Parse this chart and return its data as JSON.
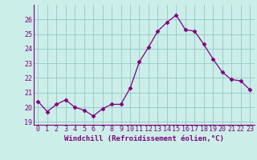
{
  "x": [
    0,
    1,
    2,
    3,
    4,
    5,
    6,
    7,
    8,
    9,
    10,
    11,
    12,
    13,
    14,
    15,
    16,
    17,
    18,
    19,
    20,
    21,
    22,
    23
  ],
  "y": [
    20.4,
    19.7,
    20.2,
    20.5,
    20.0,
    19.8,
    19.4,
    19.9,
    20.2,
    20.2,
    21.3,
    23.1,
    24.1,
    25.2,
    25.8,
    26.3,
    25.3,
    25.2,
    24.3,
    23.3,
    22.4,
    21.9,
    21.8,
    21.2
  ],
  "line_color": "#800080",
  "marker": "D",
  "marker_size": 2.5,
  "bg_color": "#cceee8",
  "grid_color": "#99cccc",
  "xlabel": "Windchill (Refroidissement éolien,°C)",
  "xlabel_color": "#800080",
  "tick_color": "#800080",
  "ylim": [
    18.8,
    27.0
  ],
  "yticks": [
    19,
    20,
    21,
    22,
    23,
    24,
    25,
    26
  ],
  "xlim": [
    -0.5,
    23.5
  ],
  "xticks": [
    0,
    1,
    2,
    3,
    4,
    5,
    6,
    7,
    8,
    9,
    10,
    11,
    12,
    13,
    14,
    15,
    16,
    17,
    18,
    19,
    20,
    21,
    22,
    23
  ],
  "tick_fontsize": 6.0,
  "xlabel_fontsize": 6.5
}
